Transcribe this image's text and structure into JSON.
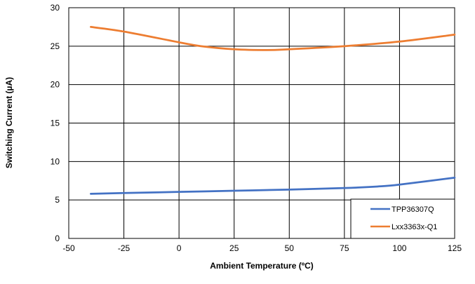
{
  "chart_data": {
    "type": "line",
    "title": "",
    "xlabel": "Ambient Temperature (ºC)",
    "ylabel": "Switching Current (µA)",
    "xlim": [
      -50,
      125
    ],
    "ylim": [
      0,
      30
    ],
    "xticks": [
      -50,
      -25,
      0,
      25,
      50,
      75,
      100,
      125
    ],
    "yticks": [
      0,
      5,
      10,
      15,
      20,
      25,
      30
    ],
    "grid": true,
    "legend_position": "bottom-right",
    "series": [
      {
        "name": "TPP36307Q",
        "color": "#4472C4",
        "x": [
          -40,
          -25,
          0,
          25,
          50,
          75,
          90,
          100,
          125
        ],
        "y": [
          5.8,
          5.9,
          6.05,
          6.2,
          6.35,
          6.55,
          6.75,
          7.0,
          7.9
        ]
      },
      {
        "name": "Lxx3363x-Q1",
        "color": "#ED7D31",
        "x": [
          -40,
          -25,
          0,
          10,
          25,
          40,
          50,
          75,
          100,
          125
        ],
        "y": [
          27.5,
          26.9,
          25.5,
          25.0,
          24.6,
          24.5,
          24.6,
          25.0,
          25.6,
          26.5
        ]
      }
    ]
  }
}
